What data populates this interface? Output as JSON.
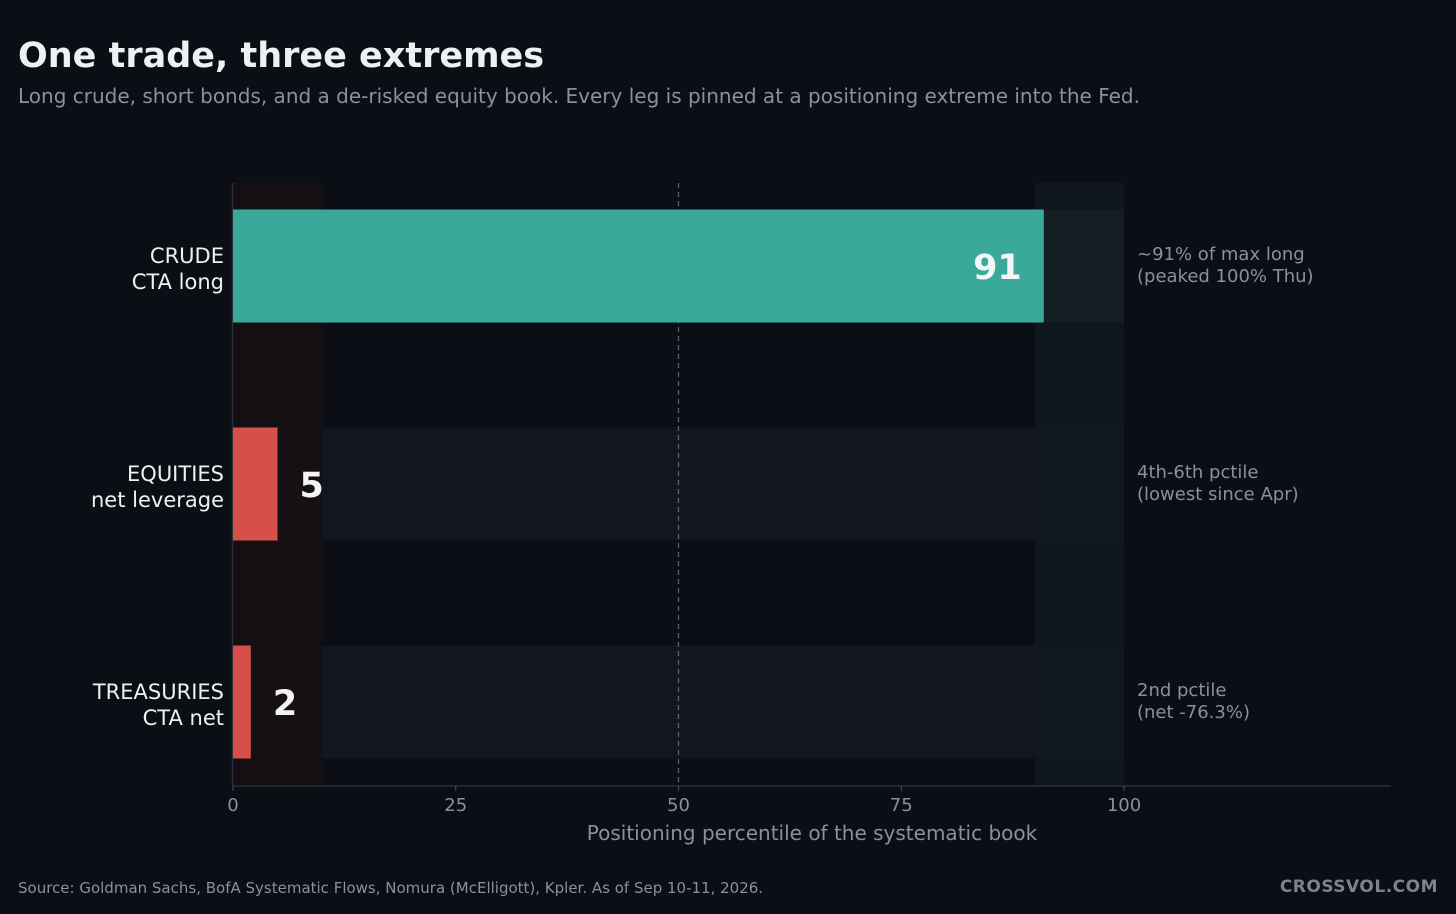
{
  "title": "One trade, three extremes",
  "subtitle": "Long crude, short bonds, and a de-risked equity book. Every leg is pinned at a positioning extreme into the Fed.",
  "source": "Source: Goldman Sachs, BofA Systematic Flows, Nomura (McElligott), Kpler. As of Sep 10-11, 2026.",
  "brand": "CROSSVOL.COM",
  "colors": {
    "background": "#0b0e14",
    "long_bar": "#3aa99a",
    "short_bar": "#d64f49",
    "track": "#121620",
    "low_zone": "#170f14",
    "high_zone": "#0f1a1e",
    "midline": "#5a6070"
  },
  "chart_data": {
    "type": "bar",
    "orientation": "horizontal",
    "xlabel": "Positioning percentile of the systematic book",
    "xlim": [
      0,
      130
    ],
    "xticks": [
      0,
      25,
      50,
      75,
      100
    ],
    "reference_line": 50,
    "shaded_zones": [
      {
        "from": 0,
        "to": 10,
        "meaning": "low extreme"
      },
      {
        "from": 90,
        "to": 100,
        "meaning": "high extreme"
      }
    ],
    "bars": [
      {
        "category_line1": "CRUDE",
        "category_line2": "CTA long",
        "value": 91,
        "value_label": "91",
        "direction": "long",
        "note_line1": "~91% of max long",
        "note_line2": "(peaked 100% Thu)"
      },
      {
        "category_line1": "EQUITIES",
        "category_line2": "net leverage",
        "value": 5,
        "value_label": "5",
        "direction": "short",
        "note_line1": "4th-6th pctile",
        "note_line2": "(lowest since Apr)"
      },
      {
        "category_line1": "TREASURIES",
        "category_line2": "CTA net",
        "value": 2,
        "value_label": "2",
        "direction": "short",
        "note_line1": "2nd pctile",
        "note_line2": "(net -76.3%)"
      }
    ]
  }
}
